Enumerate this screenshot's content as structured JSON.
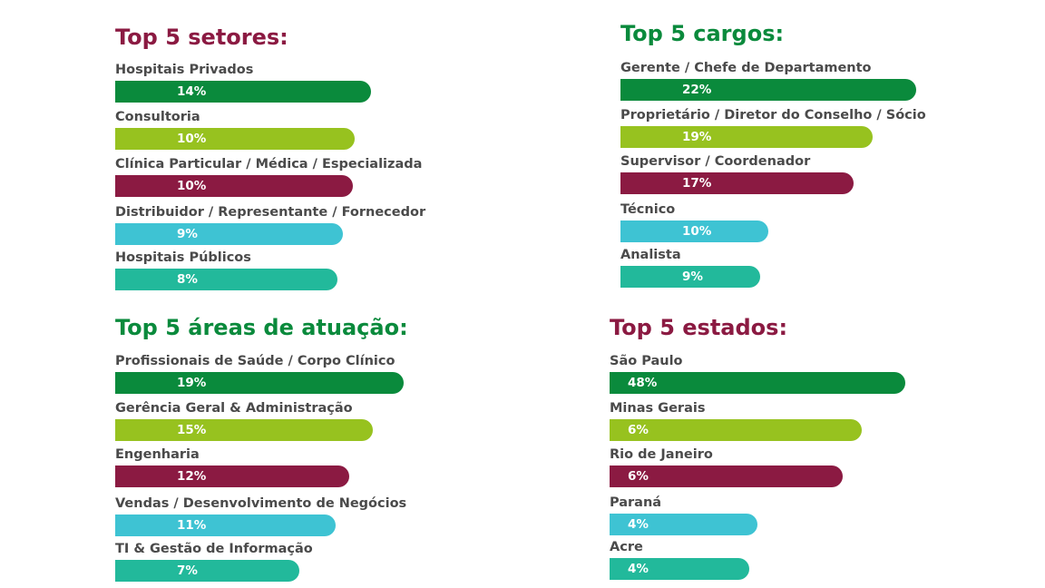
{
  "colors": {
    "green_dark": "#0a8a3c",
    "lime": "#97c21f",
    "maroon": "#8b1a42",
    "cyan": "#3ec3d3",
    "teal": "#22b99b"
  },
  "chart_data": [
    {
      "type": "bar",
      "orientation": "horizontal",
      "title": "Top 5 setores:",
      "categories": [
        "Hospitais Privados",
        "Consultoria",
        "Clínica Particular / Médica / Especializada",
        "Distribuidor / Representante / Fornecedor",
        "Hospitais Públicos"
      ],
      "values": [
        14,
        10,
        10,
        9,
        8
      ],
      "value_labels": [
        "14%",
        "10%",
        "10%",
        "9%",
        "8%"
      ],
      "title_color": "#8b1a42",
      "bar_colors": [
        "#0a8a3c",
        "#97c21f",
        "#8b1a42",
        "#3ec3d3",
        "#22b99b"
      ]
    },
    {
      "type": "bar",
      "orientation": "horizontal",
      "title": "Top 5 cargos:",
      "categories": [
        "Gerente / Chefe de Departamento",
        "Proprietário / Diretor do Conselho / Sócio",
        "Supervisor / Coordenador",
        "Técnico",
        "Analista"
      ],
      "values": [
        22,
        19,
        17,
        10,
        9
      ],
      "value_labels": [
        "22%",
        "19%",
        "17%",
        "10%",
        "9%"
      ],
      "title_color": "#0a8a3c",
      "bar_colors": [
        "#0a8a3c",
        "#97c21f",
        "#8b1a42",
        "#3ec3d3",
        "#22b99b"
      ]
    },
    {
      "type": "bar",
      "orientation": "horizontal",
      "title": "Top 5 áreas de atuação:",
      "categories": [
        "Profissionais de Saúde / Corpo Clínico",
        "Gerência Geral & Administração",
        "Engenharia",
        "Vendas / Desenvolvimento de Negócios",
        "TI & Gestão de Informação"
      ],
      "values": [
        19,
        15,
        12,
        11,
        7
      ],
      "value_labels": [
        "19%",
        "15%",
        "12%",
        "11%",
        "7%"
      ],
      "title_color": "#0a8a3c",
      "bar_colors": [
        "#0a8a3c",
        "#97c21f",
        "#8b1a42",
        "#3ec3d3",
        "#22b99b"
      ]
    },
    {
      "type": "bar",
      "orientation": "horizontal",
      "title": "Top 5 estados:",
      "categories": [
        "São Paulo",
        "Minas Gerais",
        "Rio de Janeiro",
        "Paraná",
        "Acre"
      ],
      "values": [
        48,
        6,
        6,
        4,
        4
      ],
      "value_labels": [
        "48%",
        "6%",
        "6%",
        "4%",
        "4%"
      ],
      "title_color": "#8b1a42",
      "bar_colors": [
        "#0a8a3c",
        "#97c21f",
        "#8b1a42",
        "#3ec3d3",
        "#22b99b"
      ]
    }
  ]
}
